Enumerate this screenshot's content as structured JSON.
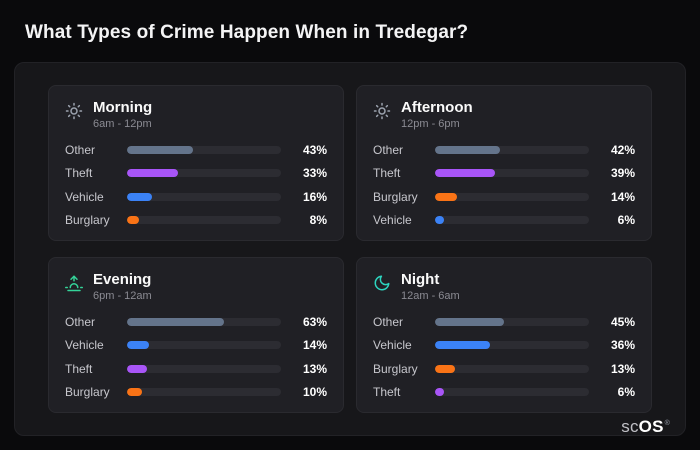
{
  "page": {
    "title": "What Types of Crime Happen When in Tredegar?"
  },
  "brand": {
    "prefix": "sc",
    "suffix": "OS",
    "registered": "®"
  },
  "category_colors": {
    "other": "#64748b",
    "theft": "#a855f7",
    "vehicle": "#3b82f6",
    "burglary": "#f97316"
  },
  "chart_data": [
    {
      "type": "bar",
      "title": "Morning",
      "subtitle": "6am - 12pm",
      "icon": "sun-icon",
      "icon_color": "#9ca3af",
      "categories": [
        "Other",
        "Theft",
        "Vehicle",
        "Burglary"
      ],
      "values": [
        43,
        33,
        16,
        8
      ],
      "labels": [
        "43%",
        "33%",
        "16%",
        "8%"
      ],
      "colors": [
        "#64748b",
        "#a855f7",
        "#3b82f6",
        "#f97316"
      ],
      "xlim": [
        0,
        100
      ]
    },
    {
      "type": "bar",
      "title": "Afternoon",
      "subtitle": "12pm - 6pm",
      "icon": "sun-icon",
      "icon_color": "#9ca3af",
      "categories": [
        "Other",
        "Theft",
        "Burglary",
        "Vehicle"
      ],
      "values": [
        42,
        39,
        14,
        6
      ],
      "labels": [
        "42%",
        "39%",
        "14%",
        "6%"
      ],
      "colors": [
        "#64748b",
        "#a855f7",
        "#f97316",
        "#3b82f6"
      ],
      "xlim": [
        0,
        100
      ]
    },
    {
      "type": "bar",
      "title": "Evening",
      "subtitle": "6pm - 12am",
      "icon": "sunset-icon",
      "icon_color": "#34d399",
      "categories": [
        "Other",
        "Vehicle",
        "Theft",
        "Burglary"
      ],
      "values": [
        63,
        14,
        13,
        10
      ],
      "labels": [
        "63%",
        "14%",
        "13%",
        "10%"
      ],
      "colors": [
        "#64748b",
        "#3b82f6",
        "#a855f7",
        "#f97316"
      ],
      "xlim": [
        0,
        100
      ]
    },
    {
      "type": "bar",
      "title": "Night",
      "subtitle": "12am - 6am",
      "icon": "moon-icon",
      "icon_color": "#2dd4bf",
      "categories": [
        "Other",
        "Vehicle",
        "Burglary",
        "Theft"
      ],
      "values": [
        45,
        36,
        13,
        6
      ],
      "labels": [
        "45%",
        "36%",
        "13%",
        "6%"
      ],
      "colors": [
        "#64748b",
        "#3b82f6",
        "#f97316",
        "#a855f7"
      ],
      "xlim": [
        0,
        100
      ]
    }
  ]
}
